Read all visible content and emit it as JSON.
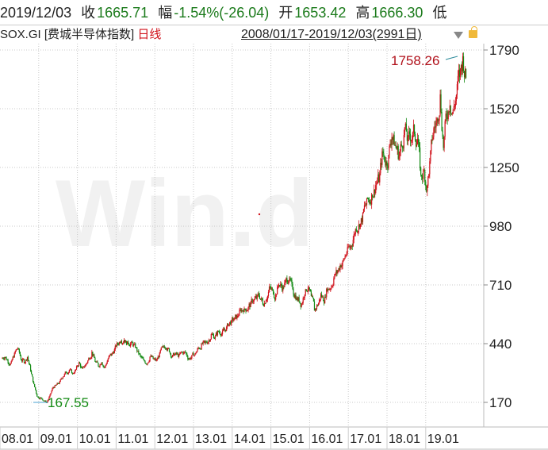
{
  "header": {
    "date": "2019/12/03",
    "close_label": "收",
    "close": "1665.71",
    "change_label": "幅",
    "change": "-1.54%(-26.04)",
    "open_label": "开",
    "open": "1653.42",
    "high_label": "高",
    "high": "1666.30",
    "low_label": "低"
  },
  "subheader": {
    "code": "SOX.GI [费城半导体指数]",
    "period": "日线",
    "range": "2008/01/17-2019/12/03(2991日)"
  },
  "watermark": "Win.d",
  "colors": {
    "up": "#d0121b",
    "down": "#138a13",
    "grid": "#c8c8c8"
  },
  "icons": [
    "dropdown-triangle-icon",
    "lock-icon"
  ],
  "chart_data": {
    "type": "candlestick",
    "x_tick_labels": [
      "08.01",
      "09.01",
      "10.01",
      "11.01",
      "12.01",
      "13.01",
      "14.01",
      "15.01",
      "16.01",
      "17.01",
      "18.01",
      "19.01"
    ],
    "y_ticks": [
      170,
      440,
      710,
      980,
      1250,
      1520,
      1790
    ],
    "ylim": [
      170,
      1790
    ],
    "grid": true,
    "annotations": {
      "max": "1758.26",
      "min": "167.55"
    },
    "monthly_close_approx": [
      380,
      360,
      350,
      390,
      420,
      370,
      360,
      380,
      320,
      250,
      200,
      190,
      180,
      170,
      200,
      240,
      250,
      260,
      290,
      310,
      320,
      300,
      320,
      350,
      320,
      340,
      370,
      400,
      360,
      340,
      360,
      330,
      370,
      390,
      410,
      440,
      460,
      460,
      440,
      440,
      430,
      410,
      380,
      360,
      350,
      380,
      370,
      360,
      390,
      420,
      430,
      410,
      380,
      390,
      380,
      400,
      400,
      370,
      380,
      390,
      420,
      430,
      440,
      450,
      480,
      470,
      490,
      490,
      500,
      520,
      540,
      550,
      560,
      590,
      600,
      600,
      620,
      640,
      650,
      660,
      630,
      650,
      690,
      680,
      660,
      720,
      700,
      720,
      740,
      700,
      660,
      640,
      620,
      680,
      700,
      650,
      600,
      620,
      660,
      640,
      700,
      700,
      740,
      770,
      800,
      820,
      860,
      880,
      920,
      980,
      1000,
      1020,
      1080,
      1100,
      1140,
      1170,
      1200,
      1300,
      1280,
      1290,
      1400,
      1350,
      1320,
      1350,
      1430,
      1360,
      1390,
      1420,
      1380,
      1200,
      1230,
      1150,
      1300,
      1420,
      1460,
      1570,
      1350,
      1500,
      1560,
      1500,
      1580,
      1680,
      1740,
      1666
    ]
  }
}
